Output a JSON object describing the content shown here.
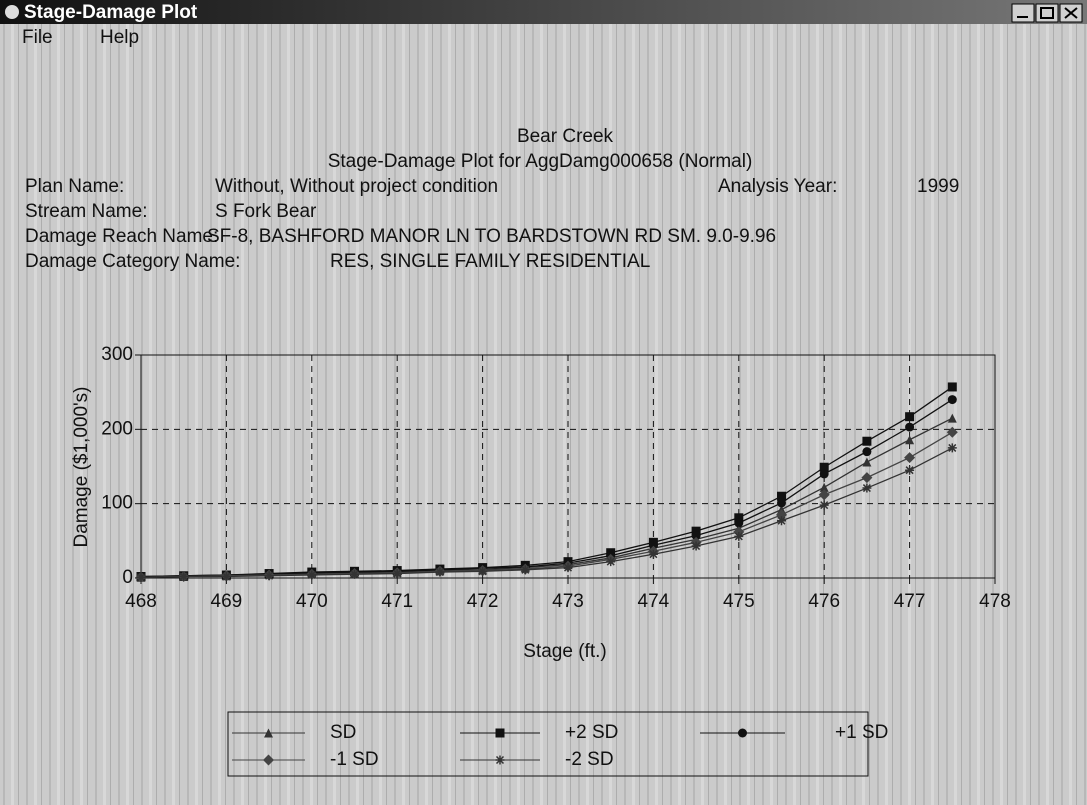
{
  "window": {
    "title": "Stage-Damage Plot"
  },
  "menu": [
    "File",
    "Help"
  ],
  "info": {
    "plan_label": "Plan Name:",
    "plan_value": "Without, Without project condition",
    "year_label": "Analysis Year:",
    "year_value": "1999",
    "stream_label": "Stream Name:",
    "stream_value": "S Fork Bear",
    "reach_label": "Damage Reach Name:",
    "reach_value": "SF-8, BASHFORD MANOR LN TO BARDSTOWN RD  SM. 9.0-9.96",
    "category_label": "Damage Category Name:",
    "category_value": "RES, SINGLE FAMILY RESIDENTIAL"
  },
  "chart_data": {
    "type": "line",
    "title": "Bear Creek",
    "subtitle": "Stage-Damage Plot for AggDamg000658 (Normal)",
    "x_label": "Stage (ft.)",
    "y_label": "Damage ($1,000's)",
    "x": [
      468,
      468.5,
      469,
      469.5,
      470,
      470.5,
      471,
      471.5,
      472,
      472.5,
      473,
      473.5,
      474,
      474.5,
      475,
      475.5,
      476,
      476.5,
      477,
      477.5
    ],
    "xlim": [
      468,
      478
    ],
    "xticks": [
      468,
      469,
      470,
      471,
      472,
      473,
      474,
      475,
      476,
      477,
      478
    ],
    "ylim": [
      0,
      300
    ],
    "yticks": [
      0,
      100,
      200,
      300
    ],
    "grid": true,
    "legend": "bottom",
    "series": [
      {
        "name": "SD",
        "color": "#333333",
        "marker": "triangle",
        "values": [
          1,
          2,
          3,
          5,
          6,
          7,
          8,
          10,
          11,
          14,
          18,
          27,
          40,
          52,
          67,
          92,
          122,
          156,
          186,
          215
        ]
      },
      {
        "name": "+2 SD",
        "color": "#111111",
        "marker": "square",
        "values": [
          2,
          3,
          4,
          6,
          8,
          9,
          10,
          12,
          14,
          17,
          22,
          34,
          48,
          63,
          81,
          110,
          149,
          184,
          217,
          257
        ]
      },
      {
        "name": "+1 SD",
        "color": "#111111",
        "marker": "circle",
        "values": [
          2,
          3,
          4,
          5,
          7,
          8,
          9,
          11,
          13,
          15,
          20,
          30,
          44,
          57,
          74,
          101,
          140,
          170,
          203,
          240
        ]
      },
      {
        "name": "-1 SD",
        "color": "#444444",
        "marker": "diamond",
        "values": [
          1,
          2,
          3,
          4,
          5,
          6,
          7,
          9,
          10,
          12,
          16,
          25,
          36,
          48,
          62,
          85,
          112,
          135,
          162,
          196
        ]
      },
      {
        "name": "-2 SD",
        "color": "#333333",
        "marker": "star",
        "values": [
          1,
          2,
          2,
          3,
          4,
          5,
          6,
          8,
          9,
          11,
          14,
          22,
          32,
          43,
          56,
          77,
          98,
          121,
          145,
          175
        ]
      }
    ]
  }
}
